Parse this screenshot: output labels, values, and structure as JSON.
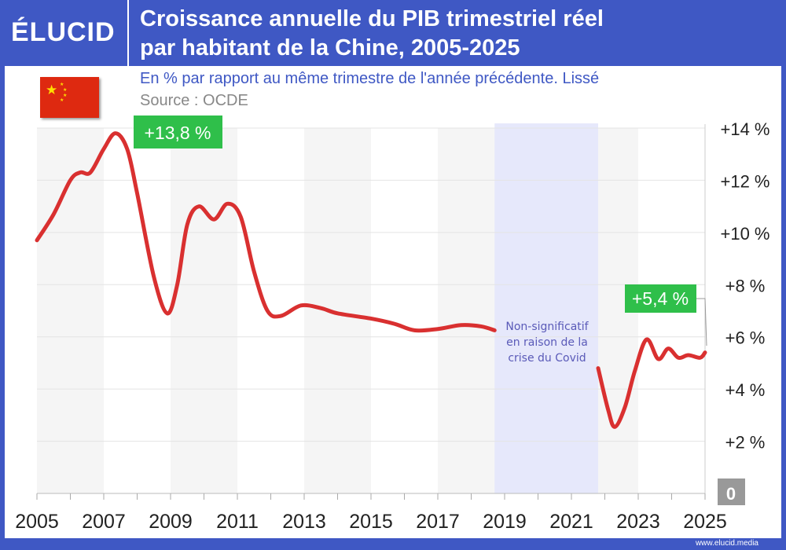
{
  "header": {
    "logo": "ÉLUCID",
    "title_line1": "Croissance annuelle du PIB trimestriel réel",
    "title_line2": "par habitant de la Chine, 2005-2025"
  },
  "subtitle": "En % par rapport au même trimestre de l'année précédente. Lissé",
  "source": "Source : OCDE",
  "footer": "www.elucid.media",
  "colors": {
    "frame": "#3f58c4",
    "line": "#d93030",
    "callout": "#2fbf4a",
    "covid_band": "#e6e8fb",
    "flag": "#de2910"
  },
  "chart_data": {
    "type": "line",
    "title": "Croissance annuelle du PIB trimestriel réel par habitant de la Chine, 2005-2025",
    "xlim": [
      2005,
      2025
    ],
    "ylim": [
      0,
      14
    ],
    "x_ticks": [
      "2005",
      "2007",
      "2009",
      "2011",
      "2013",
      "2015",
      "2017",
      "2019",
      "2021",
      "2023",
      "2025"
    ],
    "y_ticks": [
      "+2 %",
      "+4 %",
      "+6 %",
      "+8 %",
      "+10 %",
      "+12 %",
      "+14 %"
    ],
    "zero_label": "0",
    "y_axis_position": "right",
    "grid": true,
    "series": [
      {
        "segments": [
          [
            [
              2005,
              9.7
            ],
            [
              2005.5,
              10.7
            ],
            [
              2006,
              12.0
            ],
            [
              2006.3,
              12.3
            ],
            [
              2006.6,
              12.3
            ],
            [
              2007,
              13.2
            ],
            [
              2007.35,
              13.8
            ],
            [
              2007.7,
              13.2
            ],
            [
              2008,
              11.5
            ],
            [
              2008.5,
              8.3
            ],
            [
              2008.9,
              6.9
            ],
            [
              2009.2,
              8.0
            ],
            [
              2009.5,
              10.3
            ],
            [
              2009.85,
              11.0
            ],
            [
              2010.3,
              10.5
            ],
            [
              2010.7,
              11.1
            ],
            [
              2011.1,
              10.6
            ],
            [
              2011.5,
              8.5
            ],
            [
              2011.9,
              7.0
            ],
            [
              2012.3,
              6.8
            ],
            [
              2012.9,
              7.2
            ],
            [
              2013.5,
              7.1
            ],
            [
              2014,
              6.9
            ],
            [
              2015,
              6.7
            ],
            [
              2015.7,
              6.5
            ],
            [
              2016.3,
              6.25
            ],
            [
              2017,
              6.3
            ],
            [
              2017.7,
              6.45
            ],
            [
              2018.3,
              6.4
            ],
            [
              2018.7,
              6.25
            ]
          ],
          [
            [
              2021.8,
              4.8
            ],
            [
              2022.1,
              3.2
            ],
            [
              2022.3,
              2.55
            ],
            [
              2022.6,
              3.3
            ],
            [
              2022.9,
              4.7
            ],
            [
              2023.25,
              5.9
            ],
            [
              2023.6,
              5.15
            ],
            [
              2023.9,
              5.55
            ],
            [
              2024.2,
              5.2
            ],
            [
              2024.5,
              5.3
            ],
            [
              2024.85,
              5.2
            ],
            [
              2025,
              5.4
            ]
          ]
        ]
      }
    ],
    "covid_band": {
      "from": 2018.7,
      "to": 2021.8,
      "label_lines": [
        "Non-significatif",
        "en raison de la",
        "crise du Covid"
      ]
    },
    "annotations": [
      {
        "text": "+13,8 %",
        "x": 2007.35,
        "y": 13.8
      },
      {
        "text": "+5,4 %",
        "x": 2025,
        "y": 5.4
      }
    ]
  }
}
